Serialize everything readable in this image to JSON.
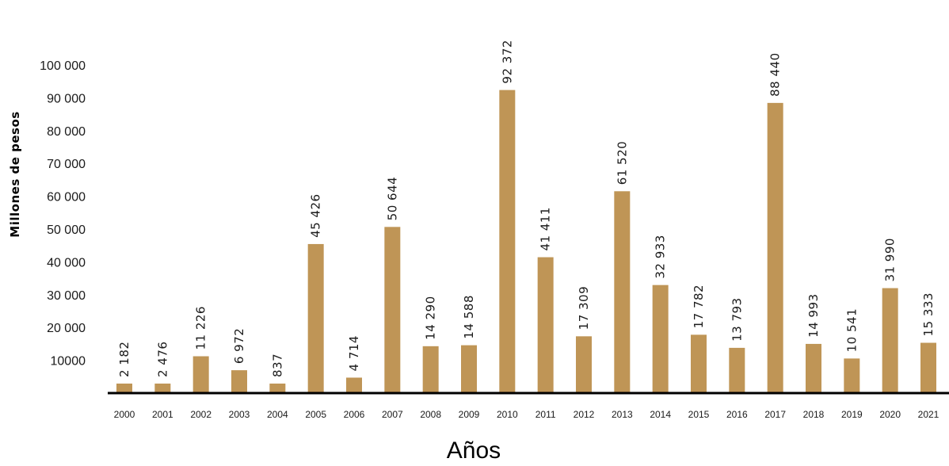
{
  "chart_data": {
    "type": "bar",
    "xlabel": "Años",
    "ylabel": "Millones de pesos",
    "ylim": [
      0,
      100000
    ],
    "yticks": [
      {
        "value": 10000,
        "label": "10000"
      },
      {
        "value": 20000,
        "label": "20 000"
      },
      {
        "value": 30000,
        "label": "30 000"
      },
      {
        "value": 40000,
        "label": "40 000"
      },
      {
        "value": 50000,
        "label": "50 000"
      },
      {
        "value": 60000,
        "label": "60 000"
      },
      {
        "value": 70000,
        "label": "70 000"
      },
      {
        "value": 80000,
        "label": "80 000"
      },
      {
        "value": 90000,
        "label": "90 000"
      },
      {
        "value": 100000,
        "label": "100 000"
      }
    ],
    "categories": [
      "2000",
      "2001",
      "2002",
      "2003",
      "2004",
      "2005",
      "2006",
      "2007",
      "2008",
      "2009",
      "2010",
      "2011",
      "2012",
      "2013",
      "2014",
      "2015",
      "2016",
      "2017",
      "2018",
      "2019",
      "2020",
      "2021"
    ],
    "values": [
      2182,
      2476,
      11226,
      6972,
      837,
      45426,
      4714,
      50644,
      14290,
      14588,
      92372,
      41411,
      17309,
      61520,
      32933,
      17782,
      13793,
      88440,
      14993,
      10541,
      31990,
      15333
    ],
    "data_labels": [
      "2 182",
      "2 476",
      "11 226",
      "6 972",
      "837",
      "45 426",
      "4 714",
      "50 644",
      "14 290",
      "14 588",
      "92 372",
      "41 411",
      "17 309",
      "61 520",
      "32 933",
      "17 782",
      "13 793",
      "88 440",
      "14 993",
      "10 541",
      "31 990",
      "15 333"
    ],
    "bar_color": "#BF9556",
    "axis_color": "#000000",
    "grid": false,
    "legend": false
  }
}
